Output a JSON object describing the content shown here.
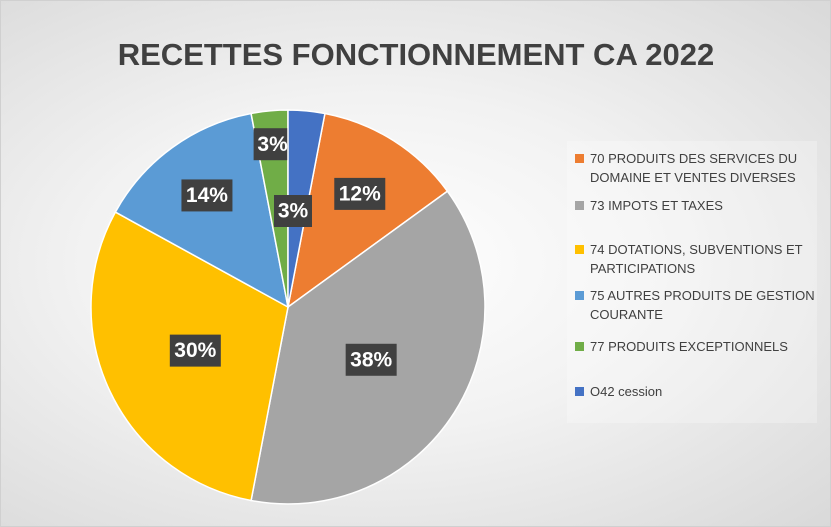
{
  "chart_data": {
    "type": "pie",
    "title": "RECETTES FONCTIONNEMENT CA 2022",
    "categories": [
      "70 PRODUITS DES SERVICES DU DOMAINE ET VENTES DIVERSES",
      "73 IMPOTS ET TAXES",
      "74 DOTATIONS, SUBVENTIONS ET PARTICIPATIONS",
      "75 AUTRES PRODUITS DE GESTION COURANTE",
      "77 PRODUITS EXCEPTIONNELS",
      "O42 cession"
    ],
    "values": [
      12,
      38,
      30,
      14,
      3,
      3
    ],
    "value_labels": [
      "12%",
      "38%",
      "30%",
      "14%",
      "3%",
      "3%"
    ],
    "colors": [
      "#ED7D31",
      "#A5A5A5",
      "#FFC000",
      "#5B9BD5",
      "#70AD47",
      "#4472C4"
    ],
    "legend": "right"
  }
}
